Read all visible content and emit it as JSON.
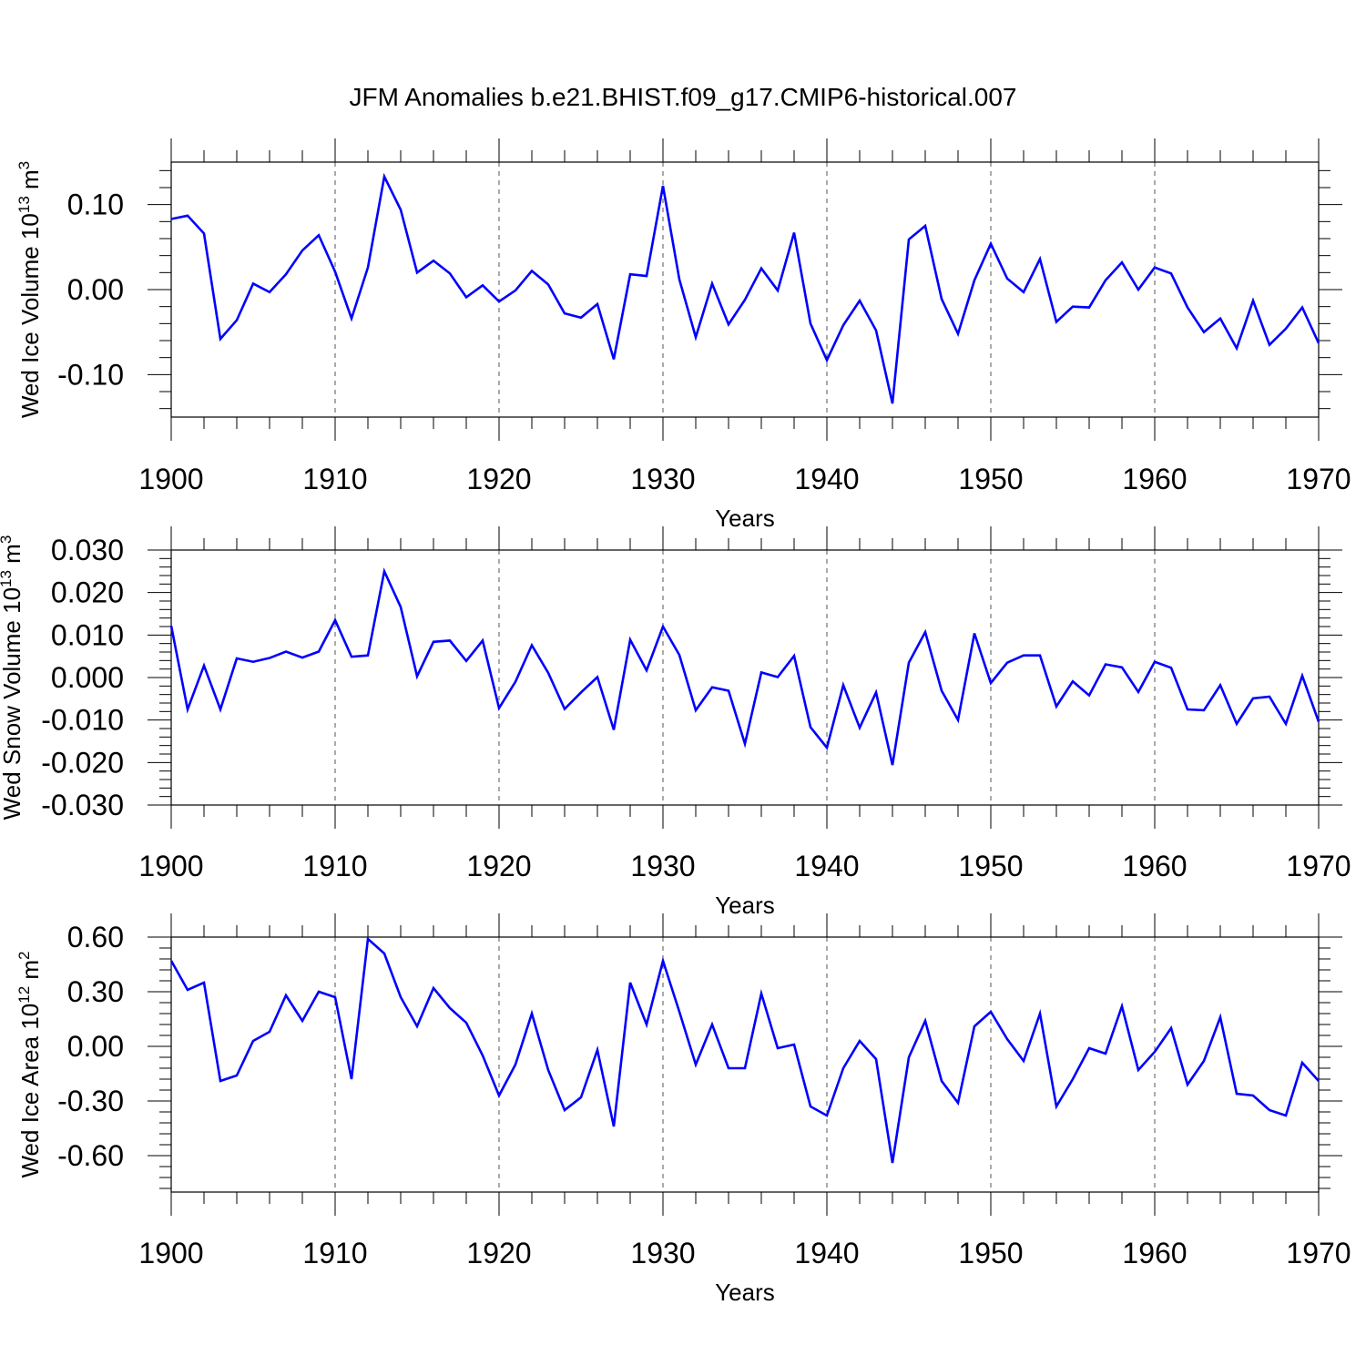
{
  "title": "JFM Anomalies b.e21.BHIST.f09_g17.CMIP6-historical.007",
  "colors": {
    "line": "#0000ff",
    "axis": "#000000",
    "grid": "#555555"
  },
  "chart_data": [
    {
      "type": "line",
      "xlabel": "Years",
      "ylabel": "Wed Ice Volume 10",
      "ylabel_exp": "13",
      "ylabel_unit": " m",
      "ylabel_unit_exp": "3",
      "xlim": [
        1900,
        1970
      ],
      "ylim": [
        -0.15,
        0.15
      ],
      "xticks": [
        "1900",
        "1910",
        "1920",
        "1930",
        "1940",
        "1950",
        "1960",
        "1970"
      ],
      "yticks": [
        "0.10",
        "0.00",
        "-0.10"
      ],
      "ytick_values": [
        0.1,
        0.0,
        -0.1
      ],
      "x_start": 1900,
      "values": [
        0.083,
        0.087,
        0.066,
        -0.058,
        -0.036,
        0.007,
        -0.003,
        0.018,
        0.046,
        0.064,
        0.021,
        -0.034,
        0.026,
        0.133,
        0.094,
        0.02,
        0.034,
        0.019,
        -0.009,
        0.005,
        -0.014,
        -0.001,
        0.022,
        0.006,
        -0.028,
        -0.033,
        -0.017,
        -0.082,
        0.018,
        0.016,
        0.122,
        0.012,
        -0.056,
        0.007,
        -0.041,
        -0.012,
        0.025,
        -0.001,
        0.067,
        -0.04,
        -0.083,
        -0.042,
        -0.013,
        -0.048,
        -0.134,
        0.059,
        0.075,
        -0.011,
        -0.052,
        0.011,
        0.054,
        0.013,
        -0.003,
        0.036,
        -0.038,
        -0.02,
        -0.021,
        0.011,
        0.032,
        0.0,
        0.026,
        0.019,
        -0.021,
        -0.05,
        -0.034,
        -0.069,
        -0.013,
        -0.065,
        -0.046,
        -0.021,
        -0.063
      ]
    },
    {
      "type": "line",
      "xlabel": "Years",
      "ylabel": "Wed Snow Volume 10",
      "ylabel_exp": "13",
      "ylabel_unit": " m",
      "ylabel_unit_exp": "3",
      "xlim": [
        1900,
        1970
      ],
      "ylim": [
        -0.03,
        0.03
      ],
      "xticks": [
        "1900",
        "1910",
        "1920",
        "1930",
        "1940",
        "1950",
        "1960",
        "1970"
      ],
      "yticks": [
        "0.030",
        "0.020",
        "0.010",
        "0.000",
        "-0.010",
        "-0.020",
        "-0.030"
      ],
      "ytick_values": [
        0.03,
        0.02,
        0.01,
        0.0,
        -0.01,
        -0.02,
        -0.03
      ],
      "x_start": 1900,
      "values": [
        0.0122,
        -0.0075,
        0.0028,
        -0.0075,
        0.0045,
        0.0037,
        0.0046,
        0.0061,
        0.0047,
        0.0061,
        0.0135,
        0.0049,
        0.0052,
        0.025,
        0.0166,
        0.0003,
        0.0084,
        0.0087,
        0.0039,
        0.0087,
        -0.0072,
        -0.001,
        0.0076,
        0.0011,
        -0.0074,
        -0.0035,
        0.0001,
        -0.0123,
        0.0089,
        0.0017,
        0.012,
        0.0053,
        -0.0077,
        -0.0023,
        -0.0031,
        -0.0156,
        0.0012,
        0.0001,
        0.0051,
        -0.0117,
        -0.0165,
        -0.0018,
        -0.0118,
        -0.0035,
        -0.0206,
        0.0035,
        0.0107,
        -0.0031,
        -0.01,
        0.0104,
        -0.0013,
        0.0035,
        0.0052,
        0.0052,
        -0.0068,
        -0.0009,
        -0.0042,
        0.0031,
        0.0024,
        -0.0034,
        0.0037,
        0.0023,
        -0.0075,
        -0.0077,
        -0.0018,
        -0.0109,
        -0.0049,
        -0.0045,
        -0.0109,
        0.0004,
        -0.0104
      ]
    },
    {
      "type": "line",
      "xlabel": "Years",
      "ylabel": "Wed Ice Area 10",
      "ylabel_exp": "12",
      "ylabel_unit": " m",
      "ylabel_unit_exp": "2",
      "xlim": [
        1900,
        1970
      ],
      "ylim": [
        -0.8,
        0.6
      ],
      "xticks": [
        "1900",
        "1910",
        "1920",
        "1930",
        "1940",
        "1950",
        "1960",
        "1970"
      ],
      "yticks": [
        "0.60",
        "0.30",
        "0.00",
        "-0.30",
        "-0.60"
      ],
      "ytick_values": [
        0.6,
        0.3,
        0.0,
        -0.3,
        -0.6
      ],
      "x_start": 1900,
      "values": [
        0.47,
        0.31,
        0.35,
        -0.19,
        -0.16,
        0.03,
        0.08,
        0.28,
        0.14,
        0.3,
        0.27,
        -0.18,
        0.59,
        0.51,
        0.27,
        0.11,
        0.32,
        0.21,
        0.13,
        -0.05,
        -0.27,
        -0.1,
        0.18,
        -0.13,
        -0.35,
        -0.28,
        -0.02,
        -0.44,
        0.35,
        0.12,
        0.47,
        0.19,
        -0.1,
        0.12,
        -0.12,
        -0.12,
        0.29,
        -0.01,
        0.01,
        -0.33,
        -0.38,
        -0.12,
        0.03,
        -0.07,
        -0.64,
        -0.06,
        0.14,
        -0.19,
        -0.31,
        0.11,
        0.19,
        0.04,
        -0.08,
        0.18,
        -0.33,
        -0.18,
        -0.01,
        -0.04,
        0.22,
        -0.13,
        -0.03,
        0.1,
        -0.21,
        -0.08,
        0.16,
        -0.26,
        -0.27,
        -0.35,
        -0.38,
        -0.09,
        -0.19
      ]
    }
  ]
}
